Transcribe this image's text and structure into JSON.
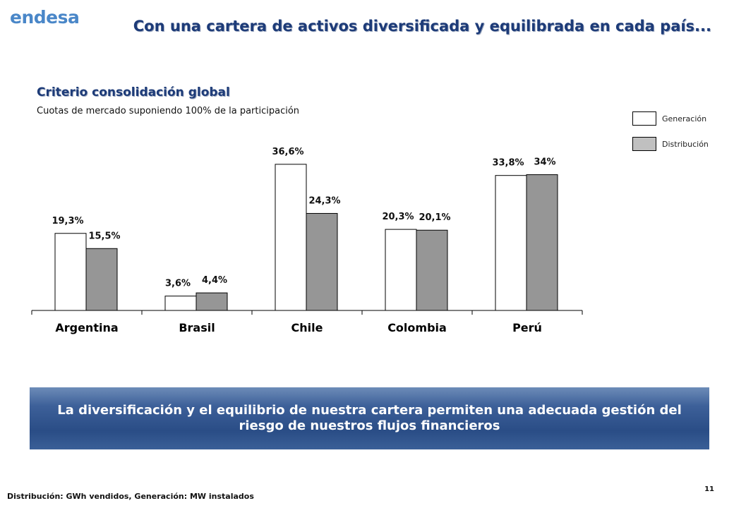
{
  "header": {
    "logo_text": "endesa",
    "title": "Con una cartera de activos diversificada y equilibrada en cada país..."
  },
  "section": {
    "heading": "Criterio consolidación global",
    "caption": "Cuotas de mercado suponiendo 100% de la participación"
  },
  "legend": {
    "items": [
      {
        "label": "Generación",
        "color": "#ffffff"
      },
      {
        "label": "Distribución",
        "color": "#c0c0c0"
      }
    ]
  },
  "chart_data": {
    "type": "bar",
    "categories": [
      "Argentina",
      "Brasil",
      "Chile",
      "Colombia",
      "Perú"
    ],
    "series": [
      {
        "name": "Generación",
        "color": "#ffffff",
        "values": [
          19.3,
          3.6,
          36.6,
          20.3,
          33.8
        ],
        "labels": [
          "19,3%",
          "3,6%",
          "36,6%",
          "20,3%",
          "33,8%"
        ]
      },
      {
        "name": "Distribución",
        "color": "#969696",
        "values": [
          15.5,
          4.4,
          24.3,
          20.1,
          34
        ],
        "labels": [
          "15,5%",
          "4,4%",
          "24,3%",
          "20,1%",
          "34%"
        ]
      }
    ],
    "ylim": [
      0,
      40
    ],
    "grid": false,
    "legend_position": "top-right"
  },
  "banner": {
    "text": "La diversificación y el equilibrio de nuestra cartera permiten una adecuada gestión del riesgo de nuestros  flujos financieros"
  },
  "footer": {
    "note": "Distribución: GWh vendidos, Generación: MW instalados",
    "page": "11"
  }
}
